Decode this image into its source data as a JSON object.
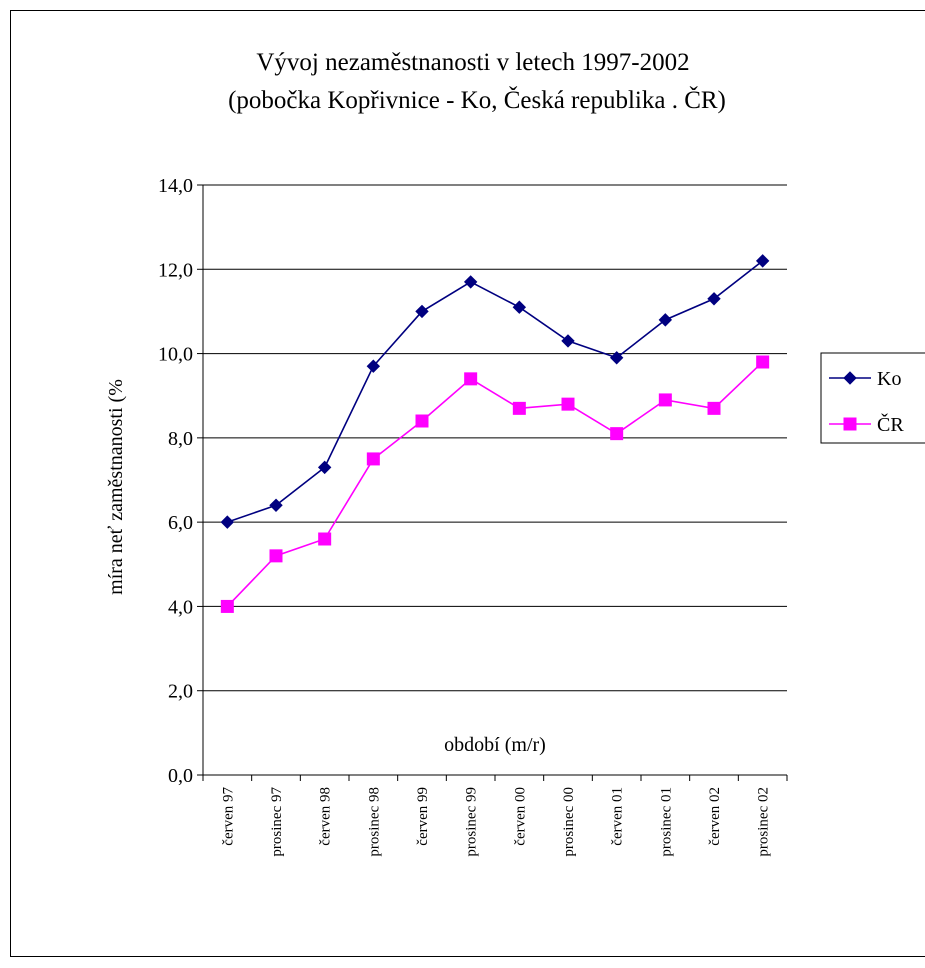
{
  "chart_data": {
    "type": "line",
    "title": "Vývoj nezaměstnanosti v letech 1997-2002",
    "subtitle": "(pobočka Kopřivnice - Ko, Česká republika . ČR)",
    "xlabel": "období (m/r)",
    "ylabel": "míra neť zaměstnanosti (%",
    "ylim": [
      0,
      14
    ],
    "yticks": [
      "0,0",
      "2,0",
      "4,0",
      "6,0",
      "8,0",
      "10,0",
      "12,0",
      "14,0"
    ],
    "grid": true,
    "legend_position": "right",
    "categories": [
      "červen 97",
      "prosinec 97",
      "červen 98",
      "prosinec 98",
      "červen 99",
      "prosinec 99",
      "červen 00",
      "prosinec 00",
      "červen 01",
      "prosinec 01",
      "červen 02",
      "prosinec 02"
    ],
    "series": [
      {
        "name": "Ko",
        "color": "#000080",
        "marker": "diamond",
        "values": [
          6.0,
          6.4,
          7.3,
          9.7,
          11.0,
          11.7,
          11.1,
          10.3,
          9.9,
          10.8,
          11.3,
          12.2
        ]
      },
      {
        "name": "ČR",
        "color": "#ff00ff",
        "marker": "square",
        "values": [
          4.0,
          5.2,
          5.6,
          7.5,
          8.4,
          9.4,
          8.7,
          8.8,
          8.1,
          8.9,
          8.7,
          9.8
        ]
      }
    ]
  }
}
